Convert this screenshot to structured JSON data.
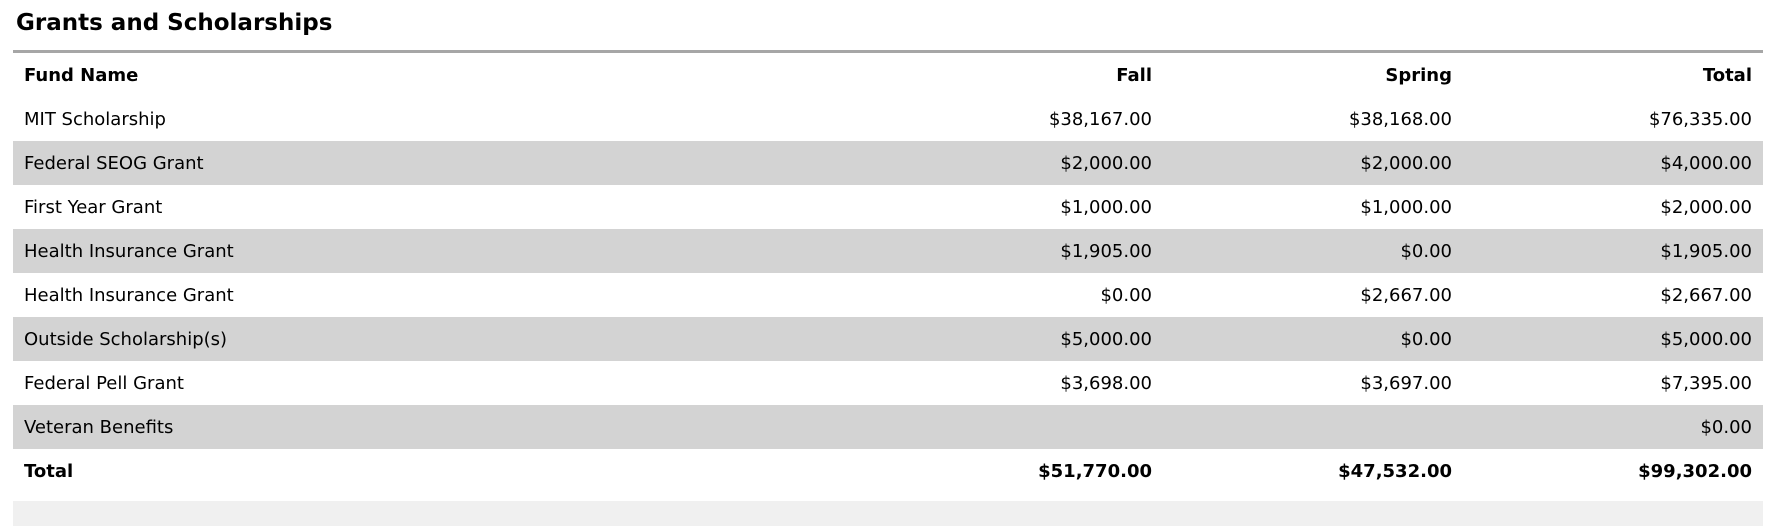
{
  "page": {
    "title": "Grants and Scholarships"
  },
  "table": {
    "columns": [
      "Fund Name",
      "Fall",
      "Spring",
      "Total"
    ],
    "rows": [
      {
        "fund": "MIT Scholarship",
        "fall": "$38,167.00",
        "spring": "$38,168.00",
        "total": "$76,335.00"
      },
      {
        "fund": "Federal SEOG Grant",
        "fall": "$2,000.00",
        "spring": "$2,000.00",
        "total": "$4,000.00"
      },
      {
        "fund": "First Year Grant",
        "fall": "$1,000.00",
        "spring": "$1,000.00",
        "total": "$2,000.00"
      },
      {
        "fund": "Health Insurance Grant",
        "fall": "$1,905.00",
        "spring": "$0.00",
        "total": "$1,905.00"
      },
      {
        "fund": "Health Insurance Grant",
        "fall": "$0.00",
        "spring": "$2,667.00",
        "total": "$2,667.00"
      },
      {
        "fund": "Outside Scholarship(s)",
        "fall": "$5,000.00",
        "spring": "$0.00",
        "total": "$5,000.00"
      },
      {
        "fund": "Federal Pell Grant",
        "fall": "$3,698.00",
        "spring": "$3,697.00",
        "total": "$7,395.00"
      },
      {
        "fund": "Veteran Benefits",
        "fall": "",
        "spring": "",
        "total": "$0.00"
      }
    ],
    "total_row": {
      "label": "Total",
      "fall": "$51,770.00",
      "spring": "$47,532.00",
      "total": "$99,302.00"
    }
  },
  "colors": {
    "row_alt": "#d3d3d3",
    "footer_row": "#f0f0f0",
    "divider": "#a6a6a6"
  }
}
